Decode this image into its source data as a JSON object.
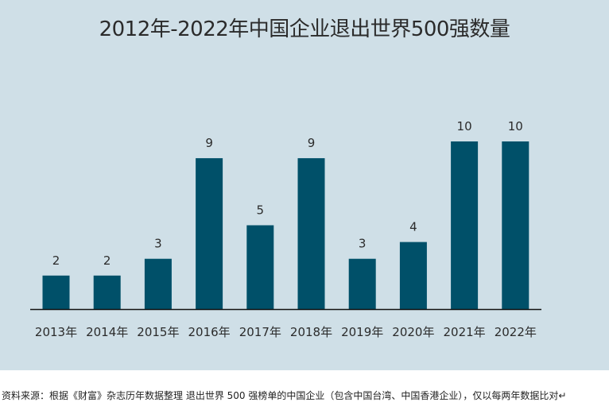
{
  "chart_data": {
    "type": "bar",
    "title": "2012年-2022年中国企业退出世界500强数量",
    "categories": [
      "2013年",
      "2014年",
      "2015年",
      "2016年",
      "2017年",
      "2018年",
      "2019年",
      "2020年",
      "2021年",
      "2022年"
    ],
    "values": [
      2,
      2,
      3,
      9,
      5,
      9,
      3,
      4,
      10,
      10
    ],
    "ylim": [
      0,
      10
    ],
    "xlabel": "",
    "ylabel": "",
    "grid": false,
    "colors": {
      "bar": "#005069",
      "background": "#cfdfe7"
    }
  },
  "source_note": "资料来源：根据《财富》杂志历年数据整理 退出世界 500 强榜单的中国企业（包含中国台湾、中国香港企业），仅以每两年数据比对↵"
}
